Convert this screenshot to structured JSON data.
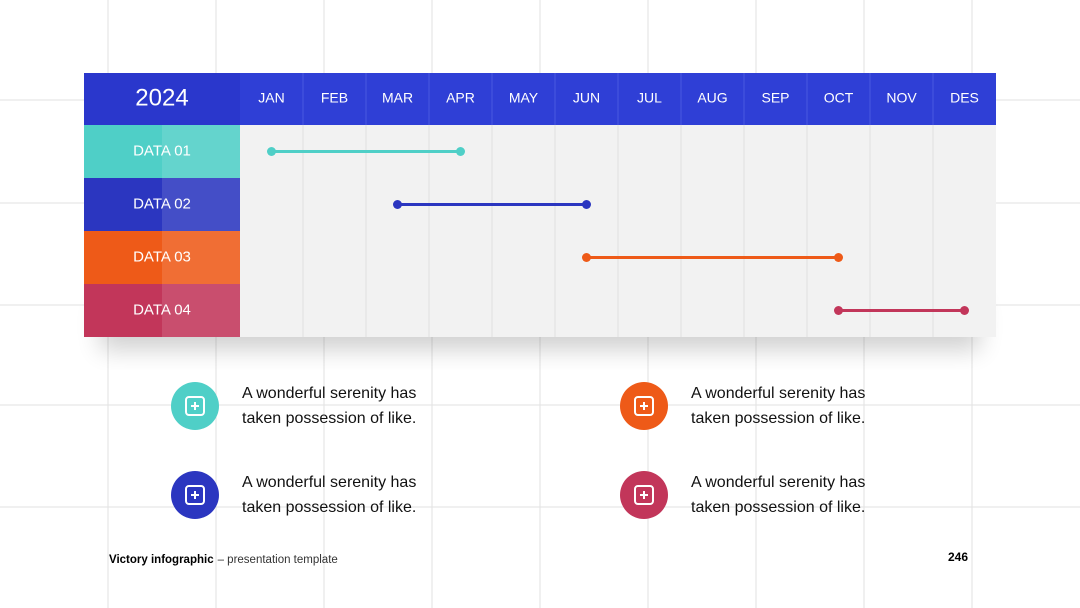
{
  "chart_data": {
    "type": "gantt",
    "title": "2024",
    "categories": [
      "JAN",
      "FEB",
      "MAR",
      "APR",
      "MAY",
      "JUN",
      "JUL",
      "AUG",
      "SEP",
      "OCT",
      "NOV",
      "DES"
    ],
    "header_color": "#2f3fd6",
    "series": [
      {
        "name": "DATA 01",
        "color": "#4fcfc7",
        "start": 0,
        "end": 3
      },
      {
        "name": "DATA 02",
        "color": "#2b36c0",
        "start": 2,
        "end": 5
      },
      {
        "name": "DATA 03",
        "color": "#ee5a18",
        "start": 5,
        "end": 9
      },
      {
        "name": "DATA 04",
        "color": "#c2365a",
        "start": 9,
        "end": 11
      }
    ]
  },
  "notes": [
    {
      "lines": [
        "A wonderful serenity has",
        "taken possession of like."
      ],
      "color": "#4fcfc7"
    },
    {
      "lines": [
        "A wonderful serenity has",
        "taken possession of like."
      ],
      "color": "#ee5a18"
    },
    {
      "lines": [
        "A wonderful serenity has",
        "taken possession of like."
      ],
      "color": "#2b36c0"
    },
    {
      "lines": [
        "A wonderful serenity has",
        "taken possession of like."
      ],
      "color": "#c2365a"
    }
  ],
  "footer": {
    "brand": "Victory infographic",
    "tagline": "– presentation template",
    "page": "246"
  }
}
